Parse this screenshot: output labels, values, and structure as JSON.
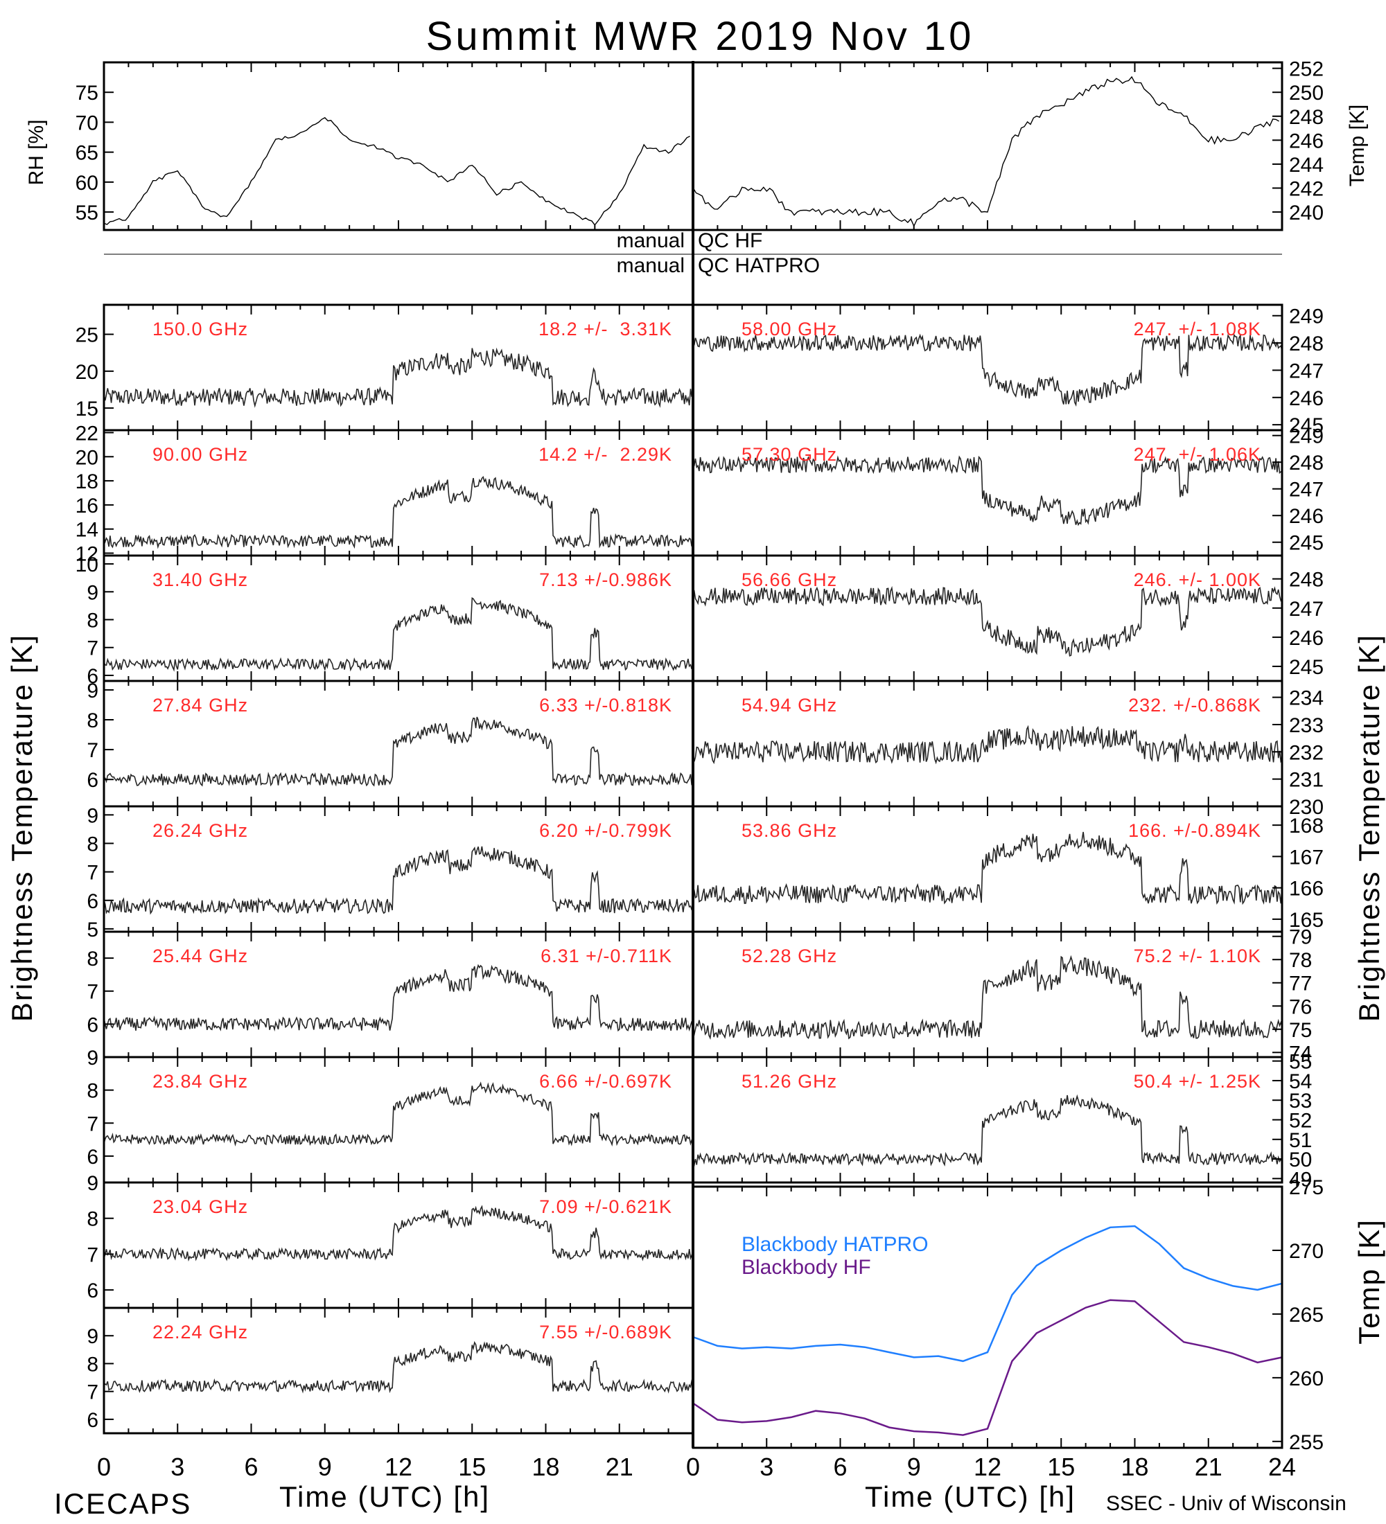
{
  "figure": {
    "title": "Summit MWR 2019 Nov 10",
    "left_footer": "ICECAPS",
    "right_footer": "SSEC - Univ of Wisconsin",
    "xlabel": "Time (UTC) [h]",
    "left_ylabel": "Brightness Temperature [K]",
    "right_ylabel": "Brightness Temperature [K]",
    "bb_ylabel": "Temp [K]",
    "qc_left_1": "manual",
    "qc_right_1": "QC HF",
    "qc_left_2": "manual",
    "qc_right_2": "QC HATPRO",
    "met_left_label": "RH [%]",
    "met_right_label": "Temp [K]",
    "trace_color": "#000000",
    "annotation_color": "#ff2a2a",
    "hatpro_color": "#1f7fff",
    "hf_color": "#6a1a8a"
  },
  "chart_data": [
    {
      "type": "line",
      "panel": "rh",
      "ylabel": "RH [%]",
      "xlim": [
        0,
        12
      ],
      "ylim": [
        52,
        80
      ],
      "yticks": [
        "55",
        "60",
        "65",
        "70",
        "75"
      ],
      "x": [
        0,
        0.5,
        1,
        1.5,
        2,
        2.5,
        3,
        3.5,
        4,
        4.5,
        5,
        5.5,
        6,
        6.5,
        7,
        7.5,
        8,
        8.5,
        9,
        9.5,
        10,
        10.5,
        11,
        11.5,
        12
      ],
      "values": [
        53,
        54,
        60,
        62,
        56,
        54,
        60,
        67,
        68,
        71,
        67,
        66,
        64,
        63,
        60,
        63,
        58,
        60,
        57,
        55,
        53,
        58,
        66,
        65,
        68
      ]
    },
    {
      "type": "line",
      "panel": "temp",
      "ylabel": "Temp [K]",
      "xlim": [
        12,
        24
      ],
      "ylim": [
        238.5,
        252.5
      ],
      "yticks": [
        "240",
        "242",
        "244",
        "246",
        "248",
        "250",
        "252"
      ],
      "x": [
        12,
        12.5,
        13,
        13.5,
        14,
        14.5,
        15,
        15.5,
        16,
        16.5,
        17,
        17.5,
        18,
        18.5,
        19,
        19.5,
        20,
        20.5,
        21,
        21.5,
        22,
        22.5,
        23,
        23.5,
        24
      ],
      "values": [
        242,
        240,
        242,
        242,
        240,
        240,
        240,
        240,
        240,
        239,
        241,
        241,
        240,
        246,
        248,
        249,
        250,
        251,
        251,
        249,
        248,
        246,
        246,
        247,
        248
      ]
    },
    {
      "type": "line",
      "panel": "bb",
      "ylabel": "Temp [K]",
      "xlim": [
        0,
        24
      ],
      "ylim": [
        254.5,
        275
      ],
      "xticks": [
        "0",
        "3",
        "6",
        "9",
        "12",
        "15",
        "18",
        "21",
        "24"
      ],
      "yticks": [
        "255",
        "260",
        "265",
        "270",
        "275"
      ],
      "x": [
        0,
        1,
        2,
        3,
        4,
        5,
        6,
        7,
        8,
        9,
        10,
        11,
        12,
        13,
        14,
        15,
        16,
        17,
        18,
        19,
        20,
        21,
        22,
        23,
        24
      ],
      "series": [
        {
          "name": "Blackbody HATPRO",
          "values": [
            263.2,
            262.5,
            262.3,
            262.4,
            262.3,
            262.5,
            262.6,
            262.4,
            262.0,
            261.6,
            261.7,
            261.3,
            262.0,
            266.5,
            268.8,
            270.0,
            271.0,
            271.8,
            271.9,
            270.5,
            268.6,
            267.8,
            267.2,
            266.9,
            267.4
          ]
        },
        {
          "name": "Blackbody HF",
          "values": [
            258.0,
            256.7,
            256.5,
            256.6,
            256.9,
            257.4,
            257.2,
            256.8,
            256.1,
            255.8,
            255.7,
            255.5,
            256.0,
            261.3,
            263.5,
            264.5,
            265.5,
            266.1,
            266.0,
            264.4,
            262.8,
            262.4,
            261.9,
            261.2,
            261.6
          ]
        }
      ]
    }
  ],
  "channels_left": [
    {
      "freq": "150.0 GHz",
      "stat": "18.2 +/-  3.31K",
      "ylim": [
        12,
        29
      ],
      "yticks": [
        "15",
        "20",
        "25"
      ],
      "baseline": 16.5,
      "noise": 1.2,
      "bump": 5.5
    },
    {
      "freq": "90.00 GHz",
      "stat": "14.2 +/-  2.29K",
      "ylim": [
        11.8,
        22.2
      ],
      "yticks": [
        "12",
        "14",
        "16",
        "18",
        "20",
        "22"
      ],
      "baseline": 13.0,
      "noise": 0.5,
      "bump": 5.0
    },
    {
      "freq": "31.40 GHz",
      "stat": "7.13 +/-0.986K",
      "ylim": [
        5.8,
        10.3
      ],
      "yticks": [
        "6",
        "7",
        "8",
        "9",
        "10"
      ],
      "baseline": 6.4,
      "noise": 0.2,
      "bump": 2.2
    },
    {
      "freq": "27.84 GHz",
      "stat": "6.33 +/-0.818K",
      "ylim": [
        5.1,
        9.3
      ],
      "yticks": [
        "6",
        "7",
        "8",
        "9"
      ],
      "baseline": 6.0,
      "noise": 0.2,
      "bump": 1.9
    },
    {
      "freq": "26.24 GHz",
      "stat": "6.20 +/-0.799K",
      "ylim": [
        4.9,
        9.3
      ],
      "yticks": [
        "5",
        "6",
        "7",
        "8",
        "9"
      ],
      "baseline": 5.8,
      "noise": 0.25,
      "bump": 1.9
    },
    {
      "freq": "25.44 GHz",
      "stat": "6.31 +/-0.711K",
      "ylim": [
        5.0,
        8.8
      ],
      "yticks": [
        "6",
        "7",
        "8"
      ],
      "baseline": 6.0,
      "noise": 0.2,
      "bump": 1.6
    },
    {
      "freq": "23.84 GHz",
      "stat": "6.66 +/-0.697K",
      "ylim": [
        5.2,
        9.0
      ],
      "yticks": [
        "6",
        "7",
        "8",
        "9"
      ],
      "baseline": 6.5,
      "noise": 0.15,
      "bump": 1.6
    },
    {
      "freq": "23.04 GHz",
      "stat": "7.09 +/-0.621K",
      "ylim": [
        5.5,
        9.0
      ],
      "yticks": [
        "6",
        "7",
        "8",
        "9"
      ],
      "baseline": 7.0,
      "noise": 0.15,
      "bump": 1.2
    },
    {
      "freq": "22.24 GHz",
      "stat": "7.55 +/-0.689K",
      "ylim": [
        5.5,
        10.0
      ],
      "yticks": [
        "6",
        "7",
        "8",
        "9"
      ],
      "baseline": 7.2,
      "noise": 0.2,
      "bump": 1.4
    }
  ],
  "channels_right": [
    {
      "freq": "58.00 GHz",
      "stat": "247. +/- 1.08K",
      "ylim": [
        244.8,
        249.4
      ],
      "yticks": [
        "245",
        "246",
        "247",
        "248",
        "249"
      ],
      "baseline": 248.0,
      "noise": 0.3,
      "bump": -2.0
    },
    {
      "freq": "57.30 GHz",
      "stat": "247. +/- 1.06K",
      "ylim": [
        244.5,
        249.2
      ],
      "yticks": [
        "245",
        "246",
        "247",
        "248",
        "249"
      ],
      "baseline": 247.9,
      "noise": 0.3,
      "bump": -2.0
    },
    {
      "freq": "56.66 GHz",
      "stat": "246. +/- 1.00K",
      "ylim": [
        244.5,
        248.8
      ],
      "yticks": [
        "245",
        "246",
        "247",
        "248"
      ],
      "baseline": 247.4,
      "noise": 0.3,
      "bump": -1.8
    },
    {
      "freq": "54.94 GHz",
      "stat": "232. +/-0.868K",
      "ylim": [
        230.0,
        234.6
      ],
      "yticks": [
        "230",
        "231",
        "232",
        "233",
        "234"
      ],
      "baseline": 232.0,
      "noise": 0.4,
      "bump": 0.6
    },
    {
      "freq": "53.86 GHz",
      "stat": "166. +/-0.894K",
      "ylim": [
        164.6,
        168.6
      ],
      "yticks": [
        "165",
        "166",
        "167",
        "168"
      ],
      "baseline": 165.8,
      "noise": 0.3,
      "bump": 1.8
    },
    {
      "freq": "52.28 GHz",
      "stat": "75.2 +/- 1.10K",
      "ylim": [
        73.8,
        79.2
      ],
      "yticks": [
        "74",
        "75",
        "76",
        "77",
        "78",
        "79"
      ],
      "baseline": 75.0,
      "noise": 0.4,
      "bump": 2.8
    },
    {
      "freq": "51.26 GHz",
      "stat": "50.4 +/- 1.25K",
      "ylim": [
        48.8,
        55.2
      ],
      "yticks": [
        "49",
        "50",
        "51",
        "52",
        "53",
        "54",
        "55"
      ],
      "baseline": 50.0,
      "noise": 0.3,
      "bump": 3.0
    }
  ]
}
